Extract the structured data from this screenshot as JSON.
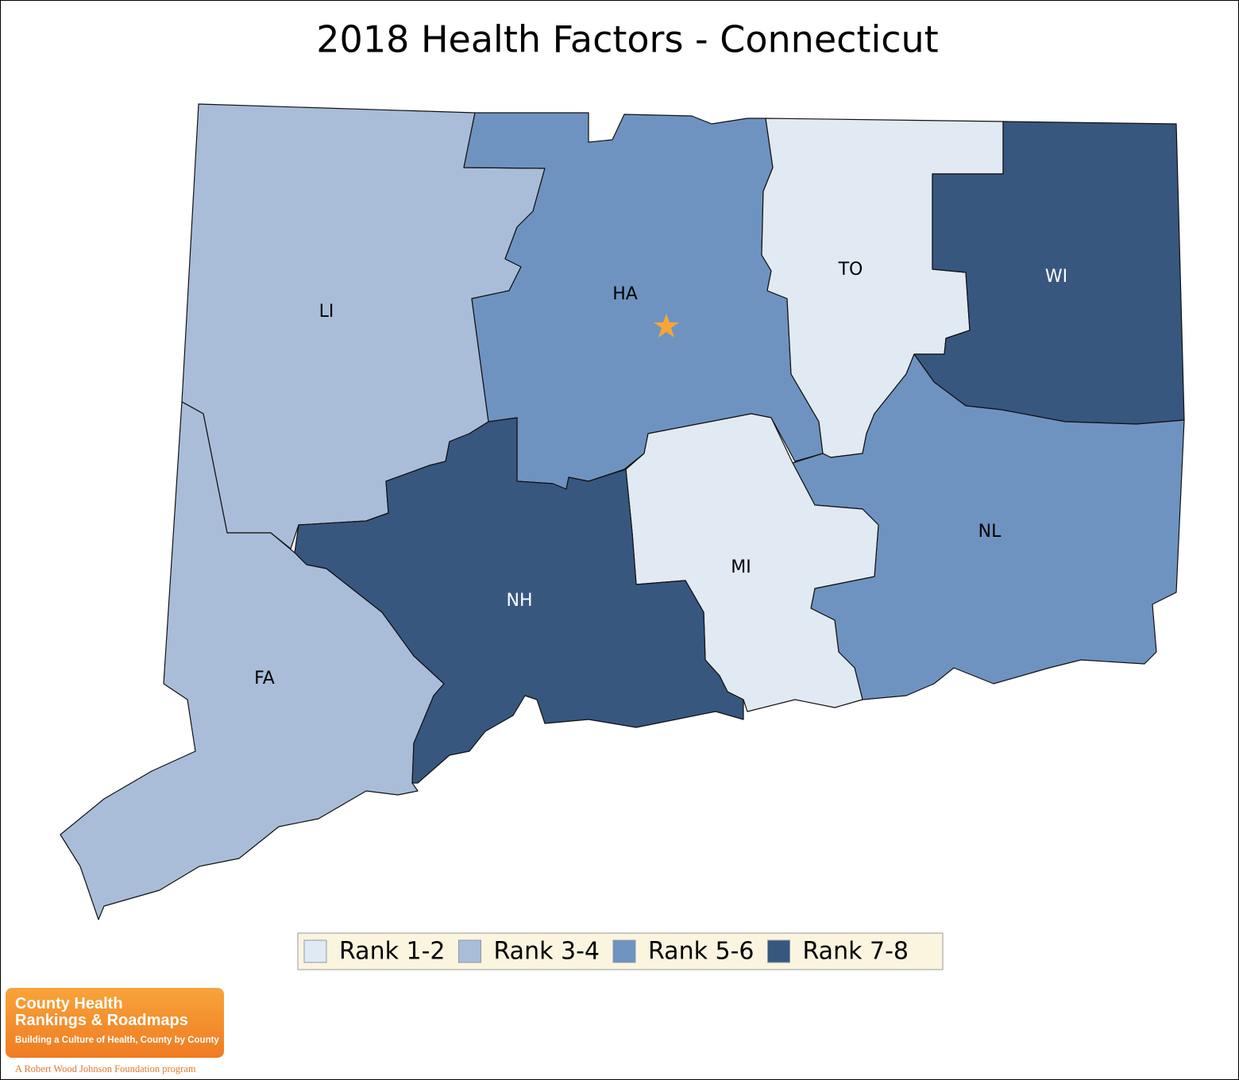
{
  "title": "2018 Health Factors - Connecticut",
  "regions": [
    {
      "label": "LI",
      "color": "#a9bdd9"
    },
    {
      "label": "FA",
      "color": "#a9bdd9"
    },
    {
      "label": "HA",
      "color": "#6f93c1"
    },
    {
      "label": "TO",
      "color": "#e1e9f3"
    },
    {
      "label": "WI",
      "color": "#37577f"
    },
    {
      "label": "NL",
      "color": "#6f93c1"
    },
    {
      "label": "MI",
      "color": "#e1e9f3"
    },
    {
      "label": "NH",
      "color": "#37577f"
    }
  ],
  "legend": [
    {
      "label": "Rank 1-2",
      "color": "#e1e9f3"
    },
    {
      "label": "Rank 3-4",
      "color": "#a9bdd9"
    },
    {
      "label": "Rank 5-6",
      "color": "#6f93c1"
    },
    {
      "label": "Rank 7-8",
      "color": "#37577f"
    }
  ],
  "logo": {
    "line1": "County Health",
    "line2": "Rankings & Roadmaps",
    "tagline": "Building a Culture of Health, County by County",
    "footer": "A Robert Wood Johnson Foundation program"
  }
}
